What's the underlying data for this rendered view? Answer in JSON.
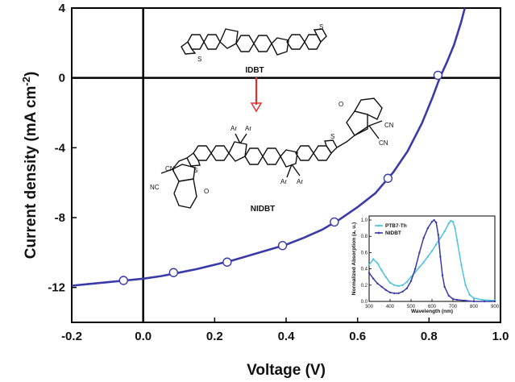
{
  "chart_data": [
    {
      "type": "line",
      "xlabel": "Voltage (V)",
      "ylabel_text": "Current density (mA cm",
      "ylabel_sup": "-2",
      "ylabel_close": ")",
      "xlim": [
        -0.2,
        1.0
      ],
      "ylim": [
        -14,
        4
      ],
      "xticks": [
        -0.2,
        0.0,
        0.2,
        0.4,
        0.6,
        0.8,
        1.0
      ],
      "xtick_labels": [
        "-0.2",
        "0.0",
        "0.2",
        "0.4",
        "0.6",
        "0.8",
        "1.0"
      ],
      "yticks": [
        4,
        0,
        -4,
        -8,
        -12
      ],
      "ytick_labels": [
        "4",
        "0",
        "-4",
        "-8",
        "-12"
      ],
      "zero_lines": true,
      "series": [
        {
          "color": "#3a3aa8",
          "x": [
            -0.2,
            -0.15,
            -0.1,
            -0.05,
            0.0,
            0.05,
            0.1,
            0.15,
            0.2,
            0.25,
            0.3,
            0.35,
            0.4,
            0.45,
            0.5,
            0.55,
            0.6,
            0.65,
            0.7,
            0.74,
            0.78,
            0.81,
            0.83,
            0.85,
            0.87,
            0.89,
            0.9
          ],
          "y": [
            -11.9,
            -11.8,
            -11.7,
            -11.6,
            -11.5,
            -11.35,
            -11.15,
            -10.95,
            -10.7,
            -10.45,
            -10.15,
            -9.85,
            -9.55,
            -9.15,
            -8.7,
            -8.1,
            -7.4,
            -6.6,
            -5.4,
            -4.2,
            -2.6,
            -1.1,
            0.0,
            0.9,
            1.9,
            3.2,
            4.0
          ]
        }
      ],
      "markers": {
        "x": [
          -0.055,
          0.085,
          0.235,
          0.39,
          0.535,
          0.685,
          0.825
        ],
        "y": [
          -11.6,
          -11.15,
          -10.55,
          -9.6,
          -8.25,
          -5.75,
          0.15
        ]
      }
    },
    {
      "type": "line",
      "xlabel": "Wavelength (nm)",
      "ylabel": "Normalized Absorption (a. u.)",
      "xlim": [
        300,
        900
      ],
      "ylim": [
        0.0,
        1.05
      ],
      "xticks": [
        300,
        400,
        500,
        600,
        700,
        800,
        900
      ],
      "xtick_labels": [
        "300",
        "400",
        "500",
        "600",
        "700",
        "800",
        "900"
      ],
      "yticks": [
        0.0,
        0.2,
        0.4,
        0.6,
        0.8,
        1.0
      ],
      "ytick_labels": [
        "0.0",
        "0.2",
        "0.4",
        "0.6",
        "0.8",
        "1.0"
      ],
      "series": [
        {
          "name": "PTB7-Th",
          "color": "#4fc3dc",
          "x": [
            300,
            320,
            340,
            360,
            380,
            400,
            420,
            440,
            460,
            480,
            500,
            520,
            540,
            560,
            580,
            600,
            620,
            640,
            660,
            680,
            690,
            700,
            710,
            720,
            740,
            760,
            780,
            800,
            840,
            900
          ],
          "y": [
            0.45,
            0.52,
            0.47,
            0.38,
            0.3,
            0.23,
            0.2,
            0.19,
            0.2,
            0.24,
            0.3,
            0.36,
            0.42,
            0.48,
            0.55,
            0.62,
            0.7,
            0.78,
            0.86,
            0.96,
            0.99,
            0.98,
            0.9,
            0.75,
            0.45,
            0.2,
            0.08,
            0.04,
            0.02,
            0.01
          ]
        },
        {
          "name": "NIDBT",
          "color": "#3a3aa8",
          "x": [
            300,
            320,
            340,
            360,
            380,
            400,
            420,
            440,
            460,
            480,
            500,
            520,
            540,
            560,
            580,
            600,
            610,
            620,
            630,
            640,
            650,
            660,
            680,
            700,
            720,
            760,
            800,
            850,
            900
          ],
          "y": [
            0.35,
            0.28,
            0.22,
            0.18,
            0.14,
            0.11,
            0.1,
            0.1,
            0.12,
            0.16,
            0.25,
            0.4,
            0.6,
            0.78,
            0.9,
            0.98,
            1.0,
            0.97,
            0.82,
            0.55,
            0.32,
            0.18,
            0.07,
            0.03,
            0.02,
            0.01,
            0.0,
            0.0,
            0.0
          ]
        }
      ]
    }
  ],
  "labels": {
    "molecule_top": "IDBT",
    "molecule_bottom": "NIDBT",
    "atom_S": "S",
    "atom_Ar": "Ar",
    "atom_CN": "CN",
    "atom_NC": "NC",
    "atom_O": "O"
  },
  "colors": {
    "main_line": "#3a3aa8",
    "arrow": "#e03030",
    "axis": "#000000"
  }
}
